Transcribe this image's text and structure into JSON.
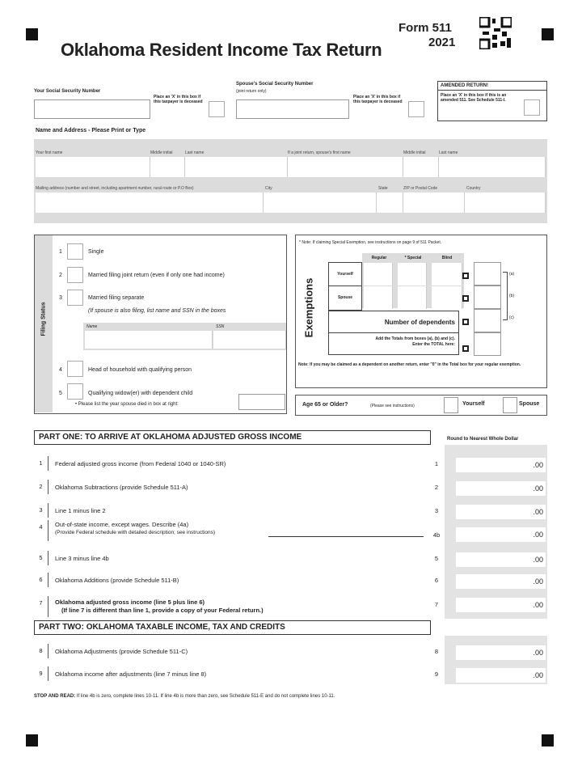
{
  "header": {
    "form_number": "Form 511",
    "year": "2021",
    "title": "Oklahoma Resident Income Tax Return",
    "qr_icon": "qr-code-icon"
  },
  "ssn": {
    "your_label": "Your Social Security Number",
    "deceased_note": "Place an 'X' in this box if this taxpayer is deceased",
    "spouse_label": "Spouse's Social Security Number",
    "spouse_sub": "(joint return only)",
    "amended_title": "AMENDED RETURN!",
    "amended_note": "Place an 'X' in this box if this is an amended 511. See Schedule 511-I."
  },
  "name_address": {
    "heading": "Name and Address - Please Print or Type",
    "fields": [
      "Your first name",
      "Middle initial",
      "Last name",
      "If a joint return, spouse's first name",
      "Middle initial",
      "Last name"
    ],
    "address_fields": [
      "Mailing address (number and street, including apartment number, rural route or P.O Box)",
      "City",
      "State",
      "ZIP or Postal Code",
      "Country"
    ]
  },
  "filing_status": {
    "label": "Filing Status",
    "options": [
      {
        "num": "1",
        "text": "Single"
      },
      {
        "num": "2",
        "text": "Married filing joint return (even if only one had income)"
      },
      {
        "num": "3",
        "text": "Married filing separate",
        "sub": "(If spouse is also filing, list name and SSN in the boxes"
      },
      {
        "num": "4",
        "text": "Head of household with qualifying person"
      },
      {
        "num": "5",
        "text": "Qualifying widow(er) with dependent child",
        "sub": "• Please list the year spouse died in box at right:"
      }
    ],
    "name_col": "Name",
    "ssn_col": "SSN"
  },
  "exemptions": {
    "label": "Exemptions",
    "note": "* Note: If claiming Special Exemption, see instructions on page 9 of 511 Packet.",
    "cols": [
      "Regular",
      "* Special",
      "Blind"
    ],
    "rows": [
      "Yourself",
      "Spouse"
    ],
    "dependents": "Number of dependents",
    "total_line1": "Add the Totals from boxes (a), (b) and (c).",
    "total_line2": "Enter the TOTAL here:",
    "refs": [
      "(a)",
      "(b)",
      "(c)"
    ],
    "footnote": "Note: If you may be claimed as a dependent on another return, enter \"0\" in the Total box for your regular exemption."
  },
  "age65": {
    "label": "Age 65 or Older?",
    "sub": "(Please see instructions)",
    "yourself": "Yourself",
    "spouse": "Spouse"
  },
  "part_one": {
    "title": "PART ONE:  TO ARRIVE AT OKLAHOMA ADJUSTED GROSS INCOME",
    "round_note": "Round to Nearest Whole Dollar",
    "lines": [
      {
        "num": "1",
        "text": "Federal adjusted gross income (from Federal 1040 or 1040-SR)",
        "ref": "1",
        "amount": ".00"
      },
      {
        "num": "2",
        "text": "Oklahoma Subtractions (provide Schedule 511-A)",
        "ref": "2",
        "amount": ".00"
      },
      {
        "num": "3",
        "text": "Line 1 minus line 2",
        "ref": "3",
        "amount": ".00"
      },
      {
        "num": "4",
        "text": "Out-of-state income, except wages. Describe (4a)",
        "text2": "(Provide Federal schedule with detailed description; see instructions)",
        "ref": "4b",
        "amount": ".00"
      },
      {
        "num": "5",
        "text": "Line 3 minus line 4b",
        "ref": "5",
        "amount": ".00"
      },
      {
        "num": "6",
        "text": "Oklahoma Additions (provide Schedule 511-B)",
        "ref": "6",
        "amount": ".00"
      },
      {
        "num": "7",
        "text": "Oklahoma adjusted gross income (line 5 plus line 6)",
        "text2": "(If line 7 is different than line 1, provide a copy of your Federal return.)",
        "ref": "7",
        "amount": ".00"
      }
    ]
  },
  "part_two": {
    "title": "PART TWO:  OKLAHOMA TAXABLE INCOME, TAX AND CREDITS",
    "lines": [
      {
        "num": "8",
        "text": "Oklahoma Adjustments (provide Schedule 511-C)",
        "ref": "8",
        "amount": ".00"
      },
      {
        "num": "9",
        "text": "Oklahoma income after adjustments (line 7 minus line 8)",
        "ref": "9",
        "amount": ".00"
      }
    ]
  },
  "stop_read": {
    "bold": "STOP AND READ:",
    "text": "If line 4b is zero, complete lines 10-11. If line 4b is more than zero, see Schedule 511-E and do not complete lines 10-11."
  }
}
